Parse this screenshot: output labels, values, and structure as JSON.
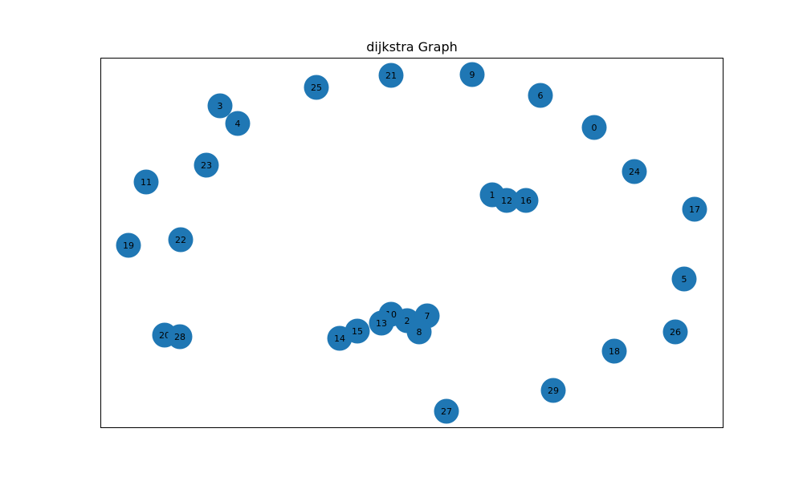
{
  "title": "dijkstra Graph",
  "node_color": "#1f77b4",
  "label_color": "#000000",
  "frame_color": "#000000",
  "nodes": [
    {
      "id": "0"
    },
    {
      "id": "1"
    },
    {
      "id": "2"
    },
    {
      "id": "3"
    },
    {
      "id": "4"
    },
    {
      "id": "5"
    },
    {
      "id": "6"
    },
    {
      "id": "7"
    },
    {
      "id": "8"
    },
    {
      "id": "9"
    },
    {
      "id": "10"
    },
    {
      "id": "11"
    },
    {
      "id": "12"
    },
    {
      "id": "13"
    },
    {
      "id": "14"
    },
    {
      "id": "15"
    },
    {
      "id": "16"
    },
    {
      "id": "17"
    },
    {
      "id": "18"
    },
    {
      "id": "19"
    },
    {
      "id": "20"
    },
    {
      "id": "21"
    },
    {
      "id": "22"
    },
    {
      "id": "23"
    },
    {
      "id": "24"
    },
    {
      "id": "25"
    },
    {
      "id": "26"
    },
    {
      "id": "27"
    },
    {
      "id": "28"
    },
    {
      "id": "29"
    }
  ]
}
